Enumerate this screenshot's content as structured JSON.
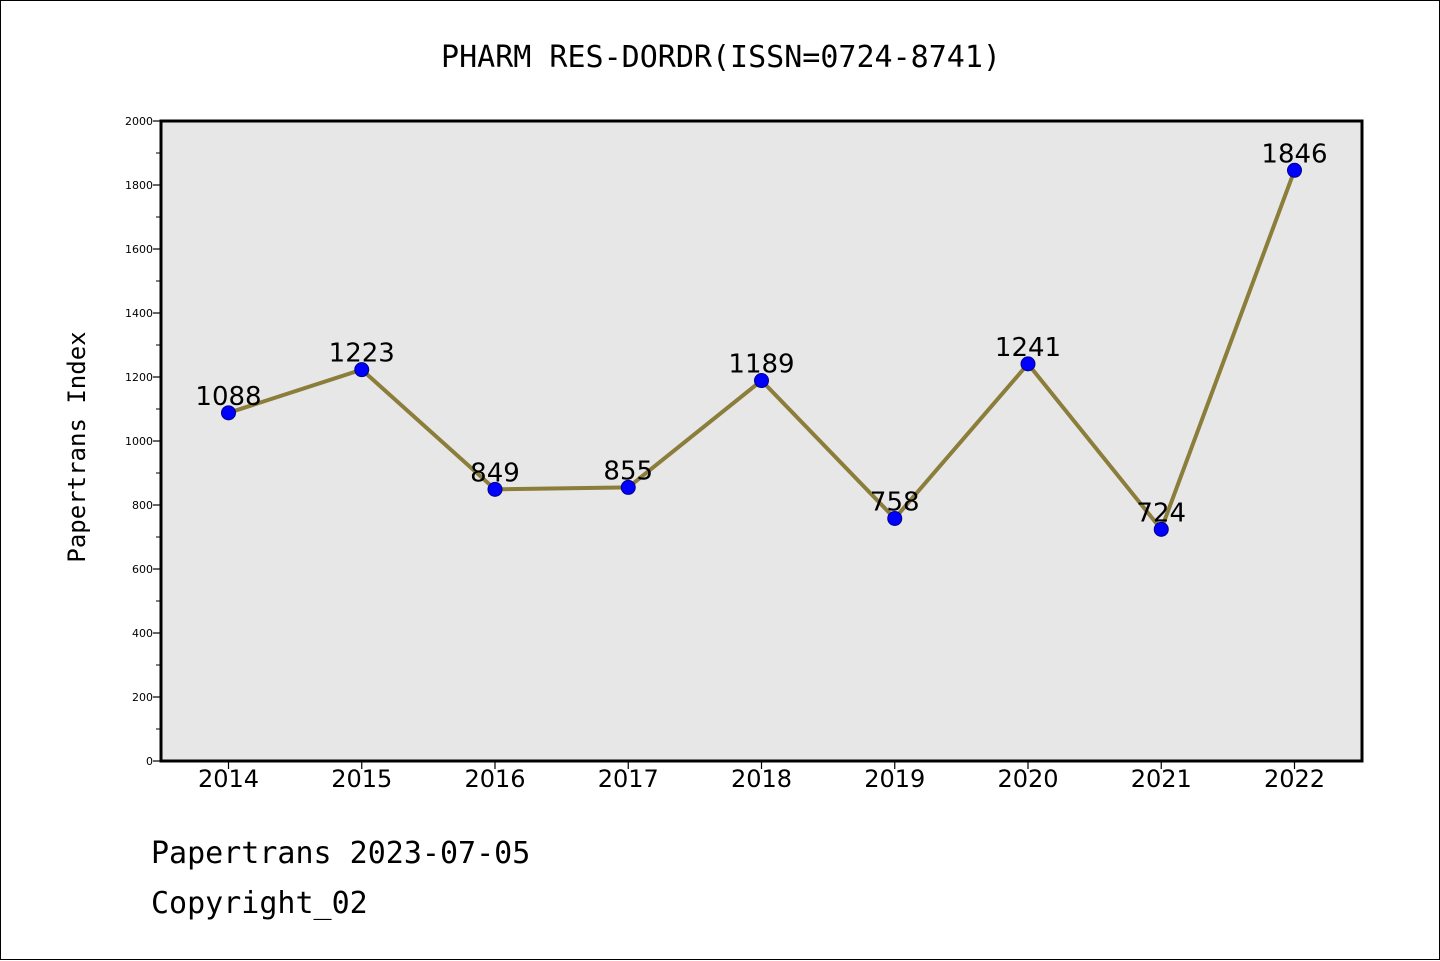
{
  "chart_data": {
    "type": "line",
    "title": "PHARM RES-DORDR(ISSN=0724-8741)",
    "xlabel": "",
    "ylabel": "Papertrans Index",
    "categories": [
      "2014",
      "2015",
      "2016",
      "2017",
      "2018",
      "2019",
      "2020",
      "2021",
      "2022"
    ],
    "series": [
      {
        "values": [
          1088,
          1223,
          849,
          855,
          1189,
          758,
          1241,
          724,
          1846
        ],
        "labels": [
          "1088",
          "1223",
          "849",
          "855",
          "1189",
          "758",
          "1241",
          "724",
          "1846"
        ]
      }
    ],
    "ylim": [
      0,
      2000
    ],
    "yticks": [
      "0",
      "200",
      "400",
      "600",
      "800",
      "1000",
      "1200",
      "1400",
      "1600",
      "1800",
      "2000"
    ],
    "grid": false,
    "line_color": "#8b7d3a",
    "marker_color": "#0000ff",
    "plot_background": "#e7e7e7"
  },
  "footer": {
    "date_line": "Papertrans 2023-07-05",
    "copyright_line": "Copyright_02"
  }
}
